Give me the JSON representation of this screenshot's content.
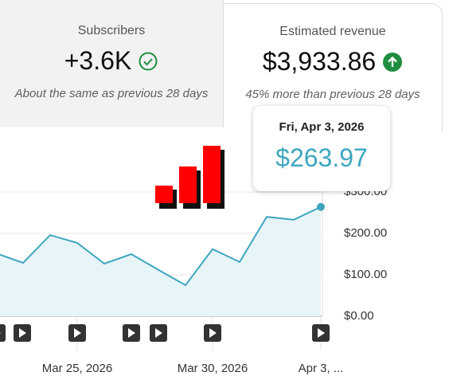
{
  "metrics": [
    {
      "title": "Subscribers",
      "value": "+3.6K",
      "note": "About the same as previous 28 days"
    },
    {
      "title": "Estimated revenue",
      "value": "$3,933.86",
      "note": "45% more than previous 28 days"
    }
  ],
  "chart_data": {
    "type": "line",
    "categories": [
      null,
      null,
      null,
      "Mar 25, 2026",
      null,
      null,
      null,
      null,
      "Mar 30, 2026",
      null,
      null,
      null,
      "Apr 3, ..."
    ],
    "values": [
      152,
      129,
      196,
      177,
      127,
      150,
      112,
      75,
      162,
      131,
      240,
      233,
      263.97
    ],
    "color": "#3ea6bf",
    "ylim": [
      0,
      300
    ],
    "yticks": [
      {
        "value": 0,
        "label": "$0.00"
      },
      {
        "value": 100,
        "label": "$100.00"
      },
      {
        "value": 200,
        "label": "$200.00"
      },
      {
        "value": 300,
        "label": "$300.00"
      }
    ],
    "grid": true,
    "tooltip": {
      "title": "Fri, Apr 3, 2026",
      "value_label": "$263.97"
    }
  }
}
